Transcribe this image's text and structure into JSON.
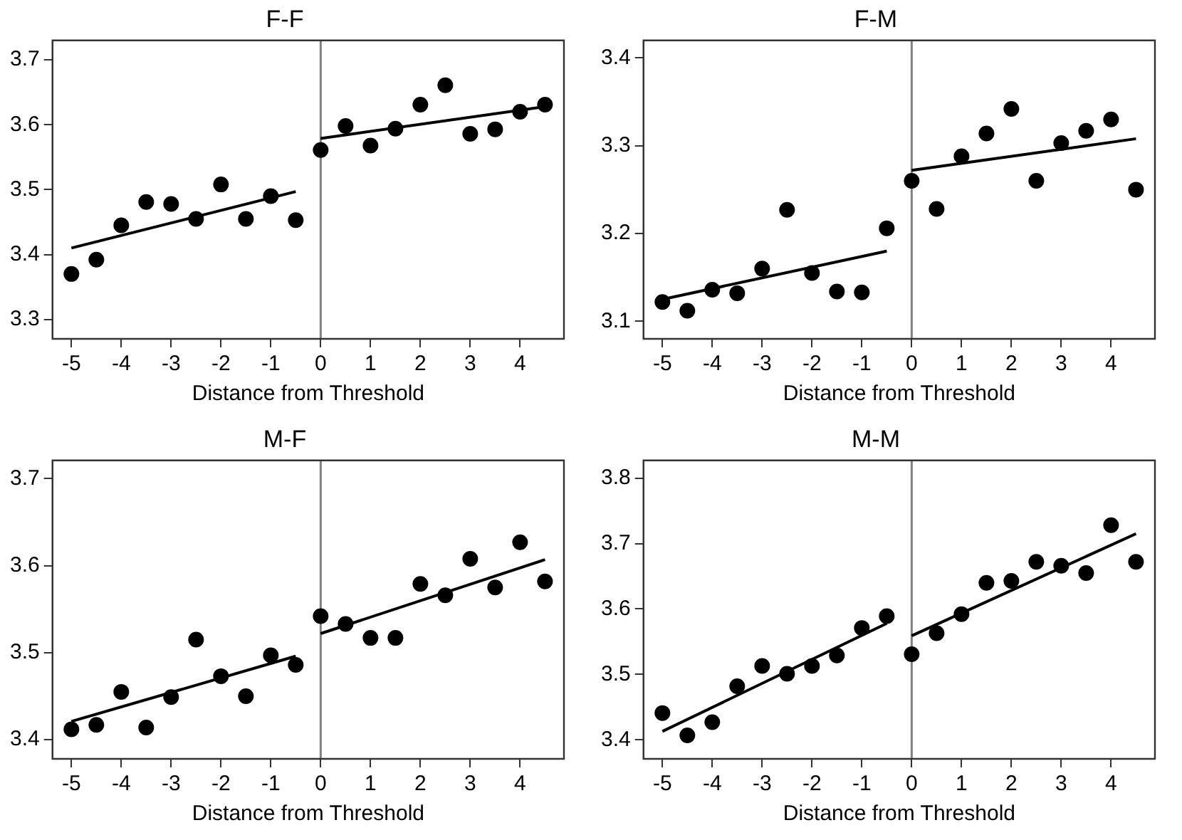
{
  "chart_data": [
    {
      "type": "scatter",
      "title": "F-F",
      "xlabel": "Distance from Threshold",
      "xlim": [
        -5.38,
        4.88
      ],
      "xticks": [
        -5,
        -4,
        -3,
        -2,
        -1,
        0,
        1,
        2,
        3,
        4
      ],
      "ylim": [
        3.27,
        3.73
      ],
      "yticks": [
        3.3,
        3.4,
        3.5,
        3.6,
        3.7
      ],
      "ref_lines": [
        {
          "axis": "x",
          "value": 0,
          "color": "#808080"
        }
      ],
      "series": [
        {
          "marker": "circle",
          "color": "#000000",
          "x": [
            -5,
            -4.5,
            -4,
            -3.5,
            -3,
            -2.5,
            -2,
            -1.5,
            -1,
            -0.5,
            0,
            0.5,
            1,
            1.5,
            2,
            2.5,
            3,
            3.5,
            4,
            4.5
          ],
          "values": [
            3.37,
            3.392,
            3.445,
            3.481,
            3.478,
            3.455,
            3.508,
            3.455,
            3.49,
            3.453,
            3.561,
            3.598,
            3.568,
            3.594,
            3.631,
            3.661,
            3.586,
            3.593,
            3.62,
            3.631
          ]
        },
        {
          "type": "line",
          "marker": "none",
          "color": "#000000",
          "x": [
            -5,
            -0.5
          ],
          "values": [
            3.41,
            3.497
          ]
        },
        {
          "type": "line",
          "marker": "none",
          "color": "#000000",
          "x": [
            0,
            4.5
          ],
          "values": [
            3.579,
            3.628
          ]
        }
      ]
    },
    {
      "type": "scatter",
      "title": "F-M",
      "xlabel": "Distance from Threshold",
      "xlim": [
        -5.38,
        4.88
      ],
      "xticks": [
        -5,
        -4,
        -3,
        -2,
        -1,
        0,
        1,
        2,
        3,
        4
      ],
      "ylim": [
        3.08,
        3.42
      ],
      "yticks": [
        3.1,
        3.2,
        3.3,
        3.4
      ],
      "ref_lines": [
        {
          "axis": "x",
          "value": 0,
          "color": "#808080"
        }
      ],
      "series": [
        {
          "marker": "circle",
          "color": "#000000",
          "x": [
            -5,
            -4.5,
            -4,
            -3.5,
            -3,
            -2.5,
            -2,
            -1.5,
            -1,
            -0.5,
            0,
            0.5,
            1,
            1.5,
            2,
            2.5,
            3,
            3.5,
            4,
            4.5
          ],
          "values": [
            3.122,
            3.112,
            3.136,
            3.132,
            3.16,
            3.227,
            3.155,
            3.134,
            3.133,
            3.206,
            3.26,
            3.228,
            3.288,
            3.314,
            3.342,
            3.26,
            3.303,
            3.317,
            3.33,
            3.25
          ]
        },
        {
          "type": "line",
          "marker": "none",
          "color": "#000000",
          "x": [
            -5,
            -0.5
          ],
          "values": [
            3.125,
            3.18
          ]
        },
        {
          "type": "line",
          "marker": "none",
          "color": "#000000",
          "x": [
            0,
            4.5
          ],
          "values": [
            3.272,
            3.308
          ]
        }
      ]
    },
    {
      "type": "scatter",
      "title": "M-F",
      "xlabel": "Distance from Threshold",
      "xlim": [
        -5.38,
        4.88
      ],
      "xticks": [
        -5,
        -4,
        -3,
        -2,
        -1,
        0,
        1,
        2,
        3,
        4
      ],
      "ylim": [
        3.378,
        3.721
      ],
      "yticks": [
        3.4,
        3.5,
        3.6,
        3.7
      ],
      "ref_lines": [
        {
          "axis": "x",
          "value": 0,
          "color": "#808080"
        }
      ],
      "series": [
        {
          "marker": "circle",
          "color": "#000000",
          "x": [
            -5,
            -4.5,
            -4,
            -3.5,
            -3,
            -2.5,
            -2,
            -1.5,
            -1,
            -0.5,
            0,
            0.5,
            1,
            1.5,
            2,
            2.5,
            3,
            3.5,
            4,
            4.5
          ],
          "values": [
            3.412,
            3.417,
            3.455,
            3.414,
            3.449,
            3.515,
            3.473,
            3.45,
            3.497,
            3.486,
            3.542,
            3.533,
            3.517,
            3.517,
            3.579,
            3.566,
            3.608,
            3.575,
            3.627,
            3.582
          ]
        },
        {
          "type": "line",
          "marker": "none",
          "color": "#000000",
          "x": [
            -5,
            -0.5
          ],
          "values": [
            3.421,
            3.496
          ]
        },
        {
          "type": "line",
          "marker": "none",
          "color": "#000000",
          "x": [
            0,
            4.5
          ],
          "values": [
            3.522,
            3.607
          ]
        }
      ]
    },
    {
      "type": "scatter",
      "title": "M-M",
      "xlabel": "Distance from Threshold",
      "xlim": [
        -5.38,
        4.88
      ],
      "xticks": [
        -5,
        -4,
        -3,
        -2,
        -1,
        0,
        1,
        2,
        3,
        4
      ],
      "ylim": [
        3.371,
        3.827
      ],
      "yticks": [
        3.4,
        3.5,
        3.6,
        3.7,
        3.8
      ],
      "ref_lines": [
        {
          "axis": "x",
          "value": 0,
          "color": "#808080"
        }
      ],
      "series": [
        {
          "marker": "circle",
          "color": "#000000",
          "x": [
            -5,
            -4.5,
            -4,
            -3.5,
            -3,
            -2.5,
            -2,
            -1.5,
            -1,
            -0.5,
            0,
            0.5,
            1,
            1.5,
            2,
            2.5,
            3,
            3.5,
            4,
            4.5
          ],
          "values": [
            3.441,
            3.407,
            3.427,
            3.482,
            3.513,
            3.501,
            3.513,
            3.529,
            3.571,
            3.589,
            3.531,
            3.563,
            3.592,
            3.64,
            3.643,
            3.672,
            3.666,
            3.655,
            3.728,
            3.672
          ]
        },
        {
          "type": "line",
          "marker": "none",
          "color": "#000000",
          "x": [
            -5,
            -0.5
          ],
          "values": [
            3.413,
            3.578
          ]
        },
        {
          "type": "line",
          "marker": "none",
          "color": "#000000",
          "x": [
            0,
            4.5
          ],
          "values": [
            3.559,
            3.715
          ]
        }
      ]
    }
  ]
}
